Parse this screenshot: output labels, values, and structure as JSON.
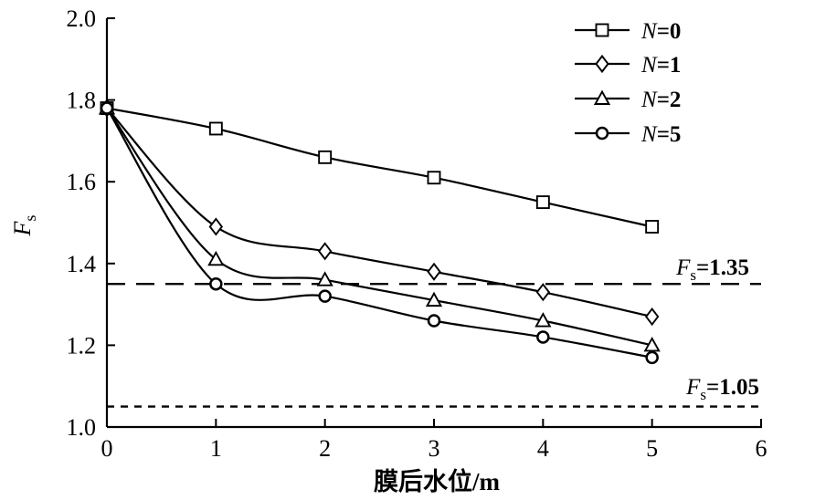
{
  "chart_data": {
    "type": "line",
    "title": "",
    "xlabel": "膜后水位/m",
    "ylabel": {
      "main": "F",
      "sub": "s"
    },
    "xlim": [
      0,
      6
    ],
    "ylim": [
      1.0,
      2.0
    ],
    "x_ticks": [
      "0",
      "1",
      "2",
      "3",
      "4",
      "5",
      "6"
    ],
    "y_ticks": [
      "1.0",
      "1.2",
      "1.4",
      "1.6",
      "1.8",
      "2.0"
    ],
    "grid": false,
    "legend_position": "top-right",
    "axis_color": "#000000",
    "line_color": "#000000",
    "x": [
      0,
      1,
      2,
      3,
      4,
      5
    ],
    "series": [
      {
        "name": "N=0",
        "variable": "N",
        "value": "0",
        "marker": "square",
        "values": [
          1.78,
          1.73,
          1.66,
          1.61,
          1.55,
          1.49
        ]
      },
      {
        "name": "N=1",
        "variable": "N",
        "value": "1",
        "marker": "diamond",
        "values": [
          1.78,
          1.49,
          1.43,
          1.38,
          1.33,
          1.27
        ]
      },
      {
        "name": "N=2",
        "variable": "N",
        "value": "2",
        "marker": "triangle",
        "values": [
          1.78,
          1.41,
          1.36,
          1.31,
          1.26,
          1.2
        ]
      },
      {
        "name": "N=5",
        "variable": "N",
        "value": "5",
        "marker": "circle",
        "values": [
          1.78,
          1.35,
          1.32,
          1.26,
          1.22,
          1.17
        ]
      }
    ],
    "reference_lines": [
      {
        "label": "Fs=1.35",
        "symbol": "F",
        "subscript": "s",
        "eq_value": "=1.35",
        "y": 1.35,
        "style": "long-dash"
      },
      {
        "label": "Fs=1.05",
        "symbol": "F",
        "subscript": "s",
        "eq_value": "=1.05",
        "y": 1.05,
        "style": "short-dash"
      }
    ]
  }
}
